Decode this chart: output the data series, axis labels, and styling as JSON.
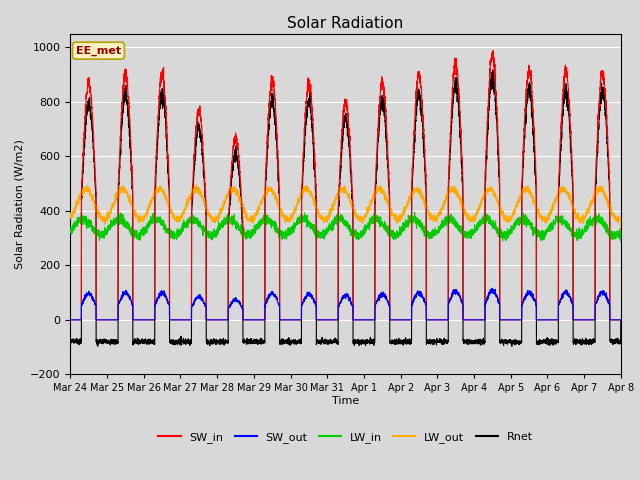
{
  "title": "Solar Radiation",
  "ylabel": "Solar Radiation (W/m2)",
  "xlabel": "Time",
  "ylim": [
    -200,
    1050
  ],
  "yticks": [
    -200,
    0,
    200,
    400,
    600,
    800,
    1000
  ],
  "bg_color": "#d8d8d8",
  "plot_bg_color": "#d8d8d8",
  "annotation_text": "EE_met",
  "annotation_bg": "#f5f0c0",
  "annotation_border": "#b8a000",
  "x_tick_labels": [
    "Mar 24",
    "Mar 25",
    "Mar 26",
    "Mar 27",
    "Mar 28",
    "Mar 29",
    "Mar 30",
    "Mar 31",
    "Apr 1",
    "Apr 2",
    "Apr 3",
    "Apr 4",
    "Apr 5",
    "Apr 6",
    "Apr 7",
    "Apr 8"
  ],
  "legend": [
    {
      "label": "SW_in",
      "color": "#ff0000"
    },
    {
      "label": "SW_out",
      "color": "#0000ff"
    },
    {
      "label": "LW_in",
      "color": "#00cc00"
    },
    {
      "label": "LW_out",
      "color": "#ffaa00"
    },
    {
      "label": "Rnet",
      "color": "#000000"
    }
  ],
  "num_days": 15,
  "points_per_day": 288,
  "sw_in_peaks": [
    870,
    900,
    900,
    770,
    670,
    880,
    870,
    800,
    870,
    900,
    940,
    970,
    920,
    910,
    910
  ],
  "lw_in_base": 340,
  "lw_out_base": 380,
  "rnet_night": -80
}
